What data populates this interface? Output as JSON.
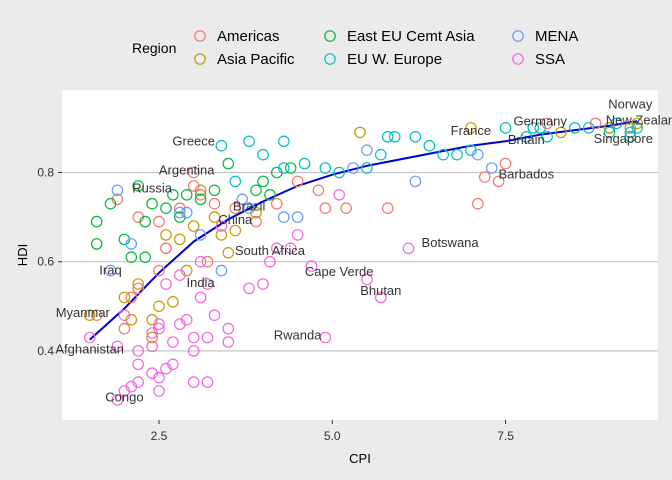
{
  "chart_data": {
    "type": "scatter",
    "xlabel": "CPI",
    "ylabel": "HDI",
    "xlim": [
      1.1,
      9.7
    ],
    "ylim": [
      0.245,
      0.985
    ],
    "x_ticks": [
      2.5,
      5.0,
      7.5
    ],
    "x_tick_labels": [
      "2.5",
      "5.0",
      "7.5"
    ],
    "y_ticks": [
      0.4,
      0.6,
      0.8
    ],
    "y_tick_labels": [
      "0.4",
      "0.6",
      "0.8"
    ],
    "grid": "horizontal",
    "legend_title": "Region",
    "legend_position": "top",
    "series": [
      {
        "name": "Americas",
        "color": "#F8766D",
        "points": [
          [
            1.9,
            0.74
          ],
          [
            2.2,
            0.7
          ],
          [
            2.5,
            0.69
          ],
          [
            2.6,
            0.63
          ],
          [
            2.8,
            0.72
          ],
          [
            3.0,
            0.77
          ],
          [
            3.1,
            0.75
          ],
          [
            3.3,
            0.73
          ],
          [
            3.6,
            0.72
          ],
          [
            3.9,
            0.69
          ],
          [
            4.2,
            0.73
          ],
          [
            4.5,
            0.78
          ],
          [
            5.8,
            0.72
          ],
          [
            7.1,
            0.73
          ],
          [
            7.2,
            0.79
          ],
          [
            7.4,
            0.78
          ],
          [
            7.5,
            0.82
          ],
          [
            8.1,
            0.91
          ],
          [
            8.8,
            0.91
          ],
          [
            9.0,
            0.9
          ],
          [
            2.5,
            0.58
          ],
          [
            2.6,
            0.63
          ],
          [
            3.2,
            0.6
          ],
          [
            2.0,
            0.45
          ],
          [
            2.1,
            0.52
          ],
          [
            1.6,
            0.48
          ],
          [
            2.2,
            0.54
          ],
          [
            3.0,
            0.8
          ],
          [
            4.8,
            0.76
          ],
          [
            5.2,
            0.72
          ],
          [
            4.9,
            0.72
          ]
        ]
      },
      {
        "name": "Asia Pacific",
        "color": "#C49A00",
        "points": [
          [
            1.5,
            0.48
          ],
          [
            2.0,
            0.52
          ],
          [
            2.2,
            0.55
          ],
          [
            2.4,
            0.47
          ],
          [
            2.5,
            0.5
          ],
          [
            2.7,
            0.51
          ],
          [
            2.8,
            0.65
          ],
          [
            2.9,
            0.58
          ],
          [
            2.6,
            0.66
          ],
          [
            3.0,
            0.68
          ],
          [
            3.3,
            0.7
          ],
          [
            3.5,
            0.62
          ],
          [
            3.9,
            0.71
          ],
          [
            5.4,
            0.89
          ],
          [
            7.0,
            0.9
          ],
          [
            8.3,
            0.89
          ],
          [
            9.0,
            0.9
          ],
          [
            9.3,
            0.9
          ],
          [
            9.4,
            0.91
          ],
          [
            3.1,
            0.76
          ],
          [
            3.6,
            0.67
          ],
          [
            3.4,
            0.66
          ],
          [
            2.4,
            0.43
          ],
          [
            2.1,
            0.47
          ]
        ]
      },
      {
        "name": "East EU Cemt Asia",
        "color": "#00BA38",
        "points": [
          [
            1.6,
            0.69
          ],
          [
            1.6,
            0.64
          ],
          [
            1.8,
            0.73
          ],
          [
            2.0,
            0.65
          ],
          [
            2.1,
            0.61
          ],
          [
            2.3,
            0.61
          ],
          [
            2.3,
            0.69
          ],
          [
            2.4,
            0.73
          ],
          [
            2.7,
            0.75
          ],
          [
            2.9,
            0.75
          ],
          [
            3.1,
            0.74
          ],
          [
            3.3,
            0.76
          ],
          [
            3.5,
            0.82
          ],
          [
            4.0,
            0.78
          ],
          [
            4.1,
            0.75
          ],
          [
            4.2,
            0.8
          ],
          [
            4.4,
            0.81
          ],
          [
            2.6,
            0.72
          ],
          [
            2.8,
            0.7
          ],
          [
            3.9,
            0.76
          ],
          [
            2.2,
            0.77
          ]
        ]
      },
      {
        "name": "EU W. Europe",
        "color": "#00BFC4",
        "points": [
          [
            3.4,
            0.86
          ],
          [
            3.8,
            0.87
          ],
          [
            4.0,
            0.84
          ],
          [
            4.3,
            0.81
          ],
          [
            4.6,
            0.82
          ],
          [
            4.9,
            0.81
          ],
          [
            5.1,
            0.8
          ],
          [
            5.5,
            0.81
          ],
          [
            5.7,
            0.84
          ],
          [
            5.8,
            0.88
          ],
          [
            5.9,
            0.88
          ],
          [
            6.2,
            0.88
          ],
          [
            6.4,
            0.86
          ],
          [
            6.8,
            0.84
          ],
          [
            7.0,
            0.85
          ],
          [
            7.5,
            0.9
          ],
          [
            7.9,
            0.9
          ],
          [
            8.1,
            0.88
          ],
          [
            8.5,
            0.9
          ],
          [
            8.7,
            0.9
          ],
          [
            9.0,
            0.89
          ],
          [
            9.1,
            0.91
          ],
          [
            9.3,
            0.89
          ],
          [
            9.4,
            0.9
          ],
          [
            9.3,
            0.88
          ],
          [
            4.3,
            0.87
          ],
          [
            3.6,
            0.78
          ],
          [
            7.8,
            0.88
          ],
          [
            8.0,
            0.9
          ],
          [
            6.6,
            0.84
          ]
        ]
      },
      {
        "name": "MENA",
        "color": "#619CFF",
        "points": [
          [
            1.9,
            0.76
          ],
          [
            1.8,
            0.58
          ],
          [
            3.1,
            0.66
          ],
          [
            2.9,
            0.71
          ],
          [
            3.4,
            0.58
          ],
          [
            3.7,
            0.74
          ],
          [
            4.3,
            0.7
          ],
          [
            4.5,
            0.7
          ],
          [
            6.2,
            0.78
          ],
          [
            7.1,
            0.84
          ],
          [
            5.3,
            0.81
          ],
          [
            5.5,
            0.85
          ],
          [
            3.8,
            0.72
          ],
          [
            2.8,
            0.71
          ],
          [
            2.1,
            0.64
          ],
          [
            7.3,
            0.81
          ]
        ]
      },
      {
        "name": "SSA",
        "color": "#F564E3",
        "points": [
          [
            1.9,
            0.29
          ],
          [
            2.0,
            0.31
          ],
          [
            2.1,
            0.32
          ],
          [
            2.2,
            0.33
          ],
          [
            2.2,
            0.37
          ],
          [
            2.2,
            0.4
          ],
          [
            2.4,
            0.35
          ],
          [
            2.5,
            0.31
          ],
          [
            2.5,
            0.34
          ],
          [
            2.6,
            0.36
          ],
          [
            2.7,
            0.37
          ],
          [
            2.4,
            0.41
          ],
          [
            2.4,
            0.44
          ],
          [
            2.5,
            0.45
          ],
          [
            2.5,
            0.46
          ],
          [
            2.8,
            0.46
          ],
          [
            2.9,
            0.47
          ],
          [
            3.0,
            0.43
          ],
          [
            3.0,
            0.4
          ],
          [
            3.0,
            0.33
          ],
          [
            3.2,
            0.33
          ],
          [
            3.1,
            0.52
          ],
          [
            3.2,
            0.55
          ],
          [
            3.3,
            0.48
          ],
          [
            3.5,
            0.45
          ],
          [
            3.5,
            0.42
          ],
          [
            3.8,
            0.54
          ],
          [
            4.0,
            0.55
          ],
          [
            4.1,
            0.6
          ],
          [
            4.2,
            0.63
          ],
          [
            4.4,
            0.63
          ],
          [
            4.5,
            0.66
          ],
          [
            4.7,
            0.59
          ],
          [
            4.9,
            0.43
          ],
          [
            6.1,
            0.63
          ],
          [
            5.1,
            0.75
          ],
          [
            5.7,
            0.52
          ],
          [
            5.5,
            0.56
          ],
          [
            2.8,
            0.57
          ],
          [
            2.6,
            0.55
          ],
          [
            1.5,
            0.43
          ],
          [
            1.9,
            0.41
          ],
          [
            2.0,
            0.48
          ],
          [
            3.1,
            0.6
          ],
          [
            3.4,
            0.68
          ],
          [
            2.7,
            0.42
          ],
          [
            3.2,
            0.43
          ]
        ]
      }
    ],
    "labels": [
      {
        "text": "Norway",
        "x": 9.3,
        "y": 0.944
      },
      {
        "text": "New Zealand",
        "x": 9.5,
        "y": 0.908
      },
      {
        "text": "Germany",
        "x": 8.0,
        "y": 0.905
      },
      {
        "text": "France",
        "x": 7.0,
        "y": 0.884
      },
      {
        "text": "Britain",
        "x": 7.8,
        "y": 0.864
      },
      {
        "text": "Singapore",
        "x": 9.2,
        "y": 0.866
      },
      {
        "text": "Barbados",
        "x": 7.8,
        "y": 0.786
      },
      {
        "text": "Greece",
        "x": 3.0,
        "y": 0.86
      },
      {
        "text": "Argentina",
        "x": 2.9,
        "y": 0.796
      },
      {
        "text": "Russia",
        "x": 2.4,
        "y": 0.755
      },
      {
        "text": "Brazil",
        "x": 3.8,
        "y": 0.715
      },
      {
        "text": "China",
        "x": 3.6,
        "y": 0.685
      },
      {
        "text": "South Africa",
        "x": 4.1,
        "y": 0.615
      },
      {
        "text": "Botswana",
        "x": 6.7,
        "y": 0.633
      },
      {
        "text": "Iraq",
        "x": 1.8,
        "y": 0.571
      },
      {
        "text": "India",
        "x": 3.1,
        "y": 0.543
      },
      {
        "text": "Cape Verde",
        "x": 5.1,
        "y": 0.568
      },
      {
        "text": "Bhutan",
        "x": 5.7,
        "y": 0.525
      },
      {
        "text": "Myanmar",
        "x": 1.4,
        "y": 0.476
      },
      {
        "text": "Rwanda",
        "x": 4.5,
        "y": 0.425
      },
      {
        "text": "Afghanistan",
        "x": 1.5,
        "y": 0.394
      },
      {
        "text": "Congo",
        "x": 2.0,
        "y": 0.286
      }
    ],
    "trend": {
      "color": "#0000CC",
      "x": [
        1.5,
        2.0,
        2.5,
        3.0,
        3.5,
        4.0,
        4.5,
        5.0,
        5.5,
        6.0,
        6.5,
        7.0,
        7.5,
        8.0,
        8.5,
        9.0,
        9.4
      ],
      "y": [
        0.425,
        0.495,
        0.575,
        0.645,
        0.695,
        0.735,
        0.77,
        0.795,
        0.815,
        0.83,
        0.845,
        0.86,
        0.87,
        0.885,
        0.895,
        0.905,
        0.915
      ]
    }
  }
}
